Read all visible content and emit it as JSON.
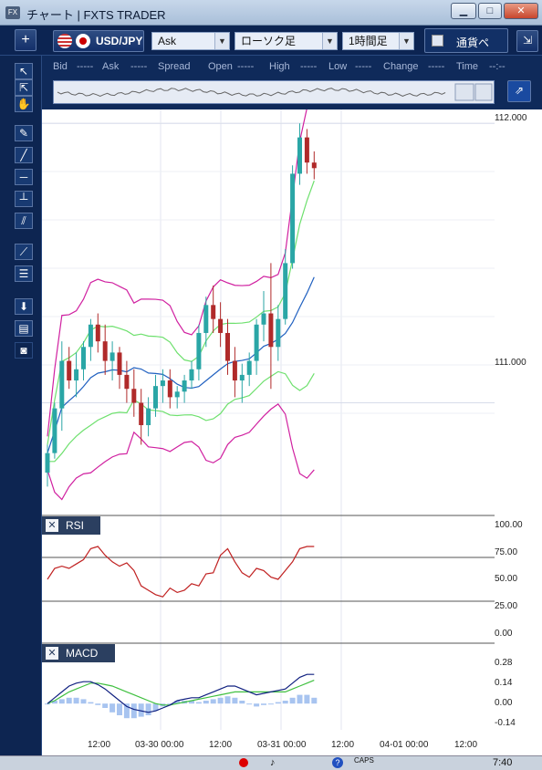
{
  "window": {
    "title": "チャート | FXTS TRADER",
    "app_icon": "FX",
    "minimize": "▁",
    "maximize": "□",
    "close": "✕"
  },
  "toolbar": {
    "add_label": "+",
    "symbol": "USD/JPY",
    "price_side": "Ask",
    "chart_type": "ローソク足",
    "timeframe": "1時間足",
    "compare_label": "通貨ペ",
    "arrow_label": "⇲"
  },
  "quote": {
    "bid_label": "Bid",
    "bid": "-----",
    "ask_label": "Ask",
    "ask": "-----",
    "spread_label": "Spread",
    "open_label": "Open",
    "open": "-----",
    "high_label": "High",
    "high": "-----",
    "low_label": "Low",
    "low": "-----",
    "change_label": "Change",
    "change": "-----",
    "time_label": "Time",
    "time": "--:--"
  },
  "rsi_label": "RSI",
  "macd_label": "MACD",
  "price_axis": [
    "112.000",
    "111.000"
  ],
  "rsi_axis": [
    "100.00",
    "75.00",
    "50.00",
    "25.00",
    "0.00"
  ],
  "macd_axis": [
    "0.28",
    "0.14",
    "0.00",
    "-0.14"
  ],
  "time_axis": [
    "12:00",
    "03-30 00:00",
    "12:00",
    "03-31 00:00",
    "12:00",
    "04-01 00:00",
    "12:00"
  ],
  "taskbar": {
    "clock": "7:40",
    "caps": "CAPS"
  },
  "colors": {
    "bull": "#2aa6a6",
    "bear": "#b02a2a",
    "bb_outer": "#d020a0",
    "bb_inner": "#6ee06e",
    "ma": "#2060c0",
    "rsi": "#c02020",
    "macd": "#102080",
    "signal": "#40c040",
    "hist": "#a8c4f0"
  },
  "chart_data": [
    {
      "type": "candlestick",
      "title": "USD/JPY",
      "ylim": [
        110.6,
        112.05
      ],
      "y_ticks": [
        111.0,
        112.0
      ],
      "ohlc": [
        [
          110.75,
          110.85,
          110.7,
          110.82
        ],
        [
          110.82,
          111.0,
          110.8,
          110.98
        ],
        [
          110.98,
          111.22,
          110.9,
          111.15
        ],
        [
          111.15,
          111.2,
          111.05,
          111.08
        ],
        [
          111.08,
          111.18,
          111.02,
          111.12
        ],
        [
          111.12,
          111.22,
          111.08,
          111.2
        ],
        [
          111.2,
          111.3,
          111.15,
          111.28
        ],
        [
          111.28,
          111.32,
          111.18,
          111.22
        ],
        [
          111.22,
          111.28,
          111.1,
          111.15
        ],
        [
          111.15,
          111.22,
          111.08,
          111.18
        ],
        [
          111.18,
          111.2,
          111.05,
          111.1
        ],
        [
          111.1,
          111.15,
          111.0,
          111.05
        ],
        [
          111.05,
          111.12,
          110.95,
          111.0
        ],
        [
          111.0,
          111.05,
          110.85,
          110.92
        ],
        [
          110.92,
          111.02,
          110.88,
          110.98
        ],
        [
          110.98,
          111.1,
          110.95,
          111.06
        ],
        [
          111.06,
          111.12,
          111.0,
          111.08
        ],
        [
          111.08,
          111.12,
          110.98,
          111.02
        ],
        [
          111.02,
          111.06,
          110.98,
          111.04
        ],
        [
          111.04,
          111.1,
          111.0,
          111.08
        ],
        [
          111.08,
          111.15,
          111.05,
          111.12
        ],
        [
          111.12,
          111.28,
          111.08,
          111.25
        ],
        [
          111.25,
          111.38,
          111.2,
          111.35
        ],
        [
          111.35,
          111.42,
          111.25,
          111.3
        ],
        [
          111.3,
          111.36,
          111.2,
          111.25
        ],
        [
          111.25,
          111.3,
          111.1,
          111.15
        ],
        [
          111.15,
          111.2,
          111.02,
          111.08
        ],
        [
          111.08,
          111.14,
          111.0,
          111.1
        ],
        [
          111.1,
          111.18,
          111.06,
          111.15
        ],
        [
          111.15,
          111.3,
          111.1,
          111.28
        ],
        [
          111.28,
          111.4,
          111.22,
          111.32
        ],
        [
          111.32,
          111.5,
          111.05,
          111.2
        ],
        [
          111.2,
          111.35,
          111.15,
          111.3
        ],
        [
          111.3,
          111.55,
          111.28,
          111.5
        ],
        [
          111.5,
          111.85,
          111.48,
          111.82
        ],
        [
          111.82,
          112.0,
          111.78,
          111.95
        ],
        [
          111.95,
          111.98,
          111.82,
          111.86
        ],
        [
          111.86,
          111.9,
          111.8,
          111.84
        ]
      ]
    },
    {
      "type": "line",
      "title": "RSI",
      "ylim": [
        0,
        100
      ],
      "y_ticks": [
        0,
        25,
        50,
        75,
        100
      ],
      "levels": [
        30,
        70
      ],
      "values": [
        50,
        60,
        62,
        60,
        64,
        68,
        78,
        80,
        72,
        66,
        62,
        65,
        58,
        44,
        40,
        36,
        34,
        42,
        38,
        40,
        46,
        44,
        55,
        56,
        72,
        78,
        66,
        56,
        52,
        60,
        58,
        52,
        50,
        58,
        66,
        78,
        80,
        80
      ]
    },
    {
      "type": "bar",
      "title": "MACD",
      "ylim": [
        -0.18,
        0.32
      ],
      "y_ticks": [
        -0.14,
        0,
        0.14,
        0.28
      ],
      "series": [
        {
          "values": [
            0.0,
            0.04,
            0.08,
            0.12,
            0.14,
            0.15,
            0.15,
            0.13,
            0.1,
            0.06,
            0.02,
            -0.02,
            -0.04,
            -0.05,
            -0.06,
            -0.05,
            -0.03,
            -0.01,
            0.02,
            0.03,
            0.04,
            0.04,
            0.06,
            0.08,
            0.1,
            0.12,
            0.12,
            0.1,
            0.08,
            0.06,
            0.07,
            0.08,
            0.09,
            0.1,
            0.14,
            0.18,
            0.2,
            0.2
          ]
        },
        {
          "values": [
            0.0,
            0.02,
            0.05,
            0.08,
            0.1,
            0.12,
            0.14,
            0.14,
            0.13,
            0.12,
            0.1,
            0.08,
            0.06,
            0.04,
            0.02,
            0.0,
            -0.01,
            -0.01,
            0.0,
            0.01,
            0.02,
            0.03,
            0.04,
            0.05,
            0.06,
            0.07,
            0.08,
            0.08,
            0.08,
            0.08,
            0.08,
            0.08,
            0.08,
            0.08,
            0.1,
            0.12,
            0.14,
            0.16
          ]
        }
      ]
    }
  ]
}
